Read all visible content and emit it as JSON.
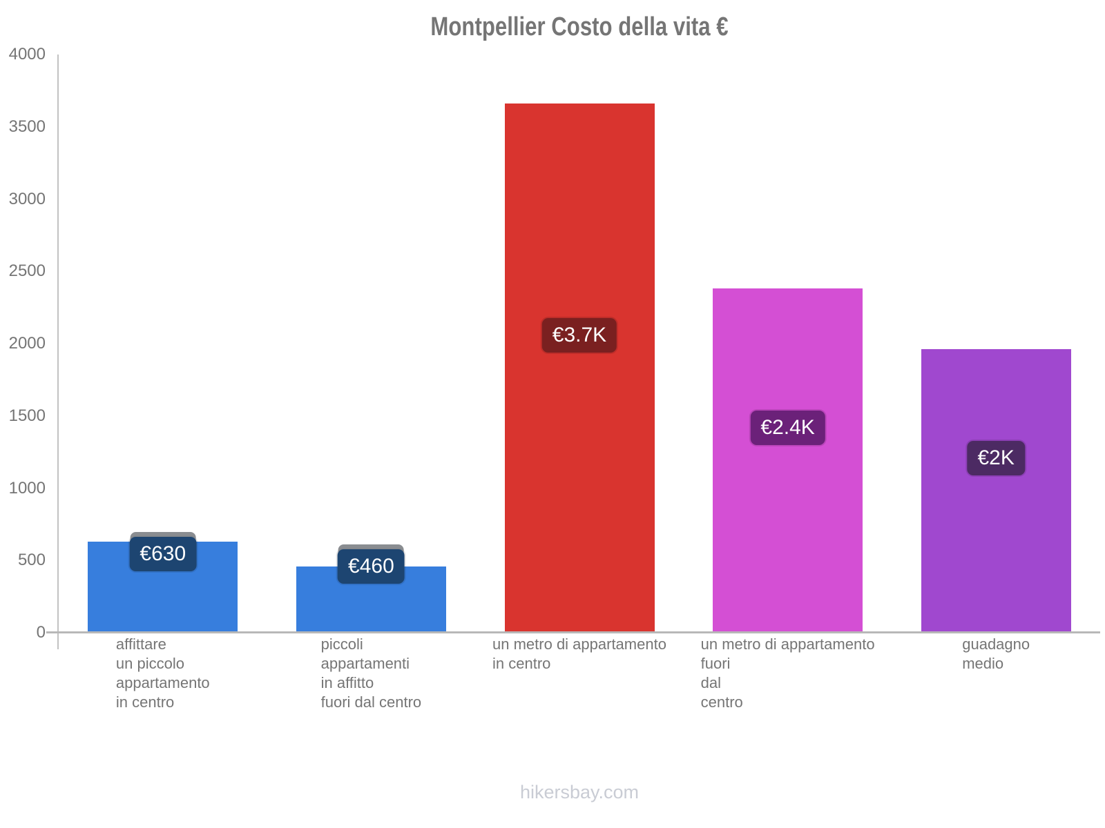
{
  "title": "Montpellier Costo della vita €",
  "footer": "hikersbay.com",
  "colors": {
    "title_text": "#757575",
    "axis_text": "#757575",
    "axis_line": "#c2c2c2",
    "x_axis_line": "#b8b8b8",
    "footer_text": "#c9ccd4",
    "badge_text": "#ffffff"
  },
  "chart_data": {
    "type": "bar",
    "title": "Montpellier Costo della vita €",
    "xlabel": "",
    "ylabel": "",
    "ylim": [
      0,
      4000
    ],
    "yticks": [
      0,
      500,
      1000,
      1500,
      2000,
      2500,
      3000,
      3500,
      4000
    ],
    "grid": "off",
    "legend": "none",
    "categories": [
      [
        "affittare",
        "un piccolo",
        "appartamento",
        "in centro"
      ],
      [
        "piccoli",
        "appartamenti",
        "in affitto",
        "fuori dal centro"
      ],
      [
        "un metro di appartamento",
        "in centro"
      ],
      [
        "un metro di appartamento",
        "fuori",
        "dal",
        "centro"
      ],
      [
        "guadagno",
        "medio"
      ]
    ],
    "values": [
      630,
      460,
      3660,
      2380,
      1960
    ],
    "value_labels": [
      "€630",
      "€460",
      "€3.7K",
      "€2.4K",
      "€2K"
    ],
    "bar_colors": [
      "#377edd",
      "#377edd",
      "#d9342f",
      "#d44fd4",
      "#a048cf"
    ],
    "badge_colors": [
      "#1d4571",
      "#1d4571",
      "#7a2020",
      "#6b2179",
      "#4c2a63"
    ]
  }
}
